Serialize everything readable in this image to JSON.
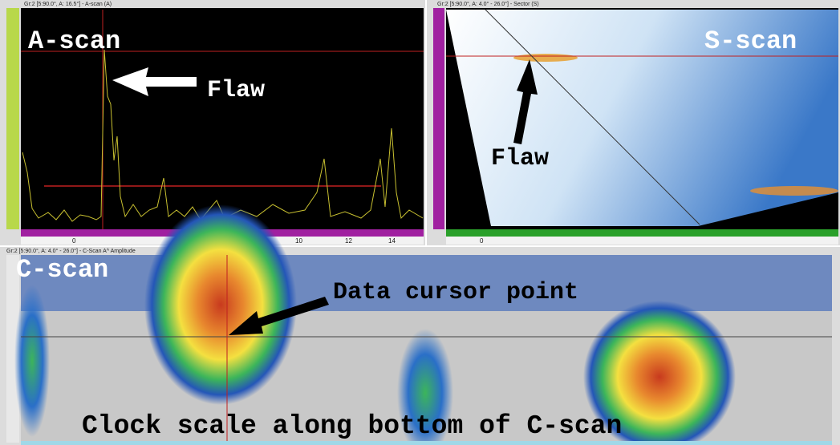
{
  "panels": {
    "ascan": {
      "header": "Gr:2 [5:90.0°, A: 16.5°] - A-scan (A)",
      "label": "A-scan",
      "annotation": "Flaw",
      "ticks": [
        "0",
        "10",
        "12",
        "14"
      ]
    },
    "sscan": {
      "header": "Gr:2 [5:90.0°, A: 4.0° - 26.0°] - Sector (S)",
      "label": "S-scan",
      "annotation": "Flaw",
      "ticks": [
        "0"
      ]
    },
    "cscan": {
      "header": "Gr:2 [5:90.0°, A: 4.0° - 26.0°] - C-Scan A^ Amplitude",
      "label": "C-scan",
      "annotation": "Data cursor point",
      "caption": "Clock scale along bottom of C-scan"
    }
  }
}
